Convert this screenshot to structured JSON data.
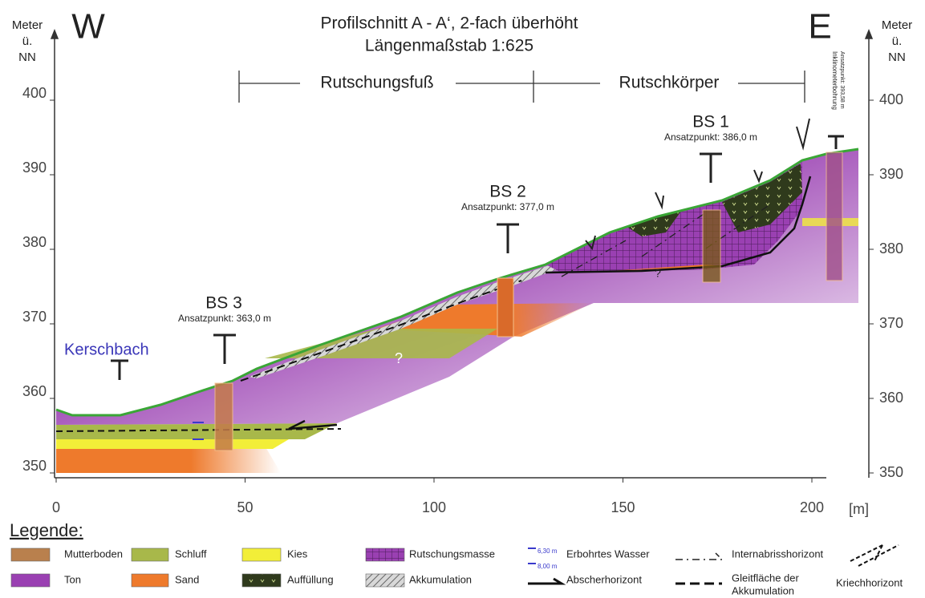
{
  "header": {
    "west": "W",
    "east": "E",
    "title_line1": "Profilschnitt A - A‘, 2-fach überhöht",
    "title_line2": "Längenmaßstab 1:625"
  },
  "axes": {
    "left_label": [
      "Meter",
      "ü.",
      "NN"
    ],
    "right_label": [
      "Meter",
      "ü.",
      "NN"
    ],
    "y_ticks": [
      350,
      360,
      370,
      380,
      390,
      400
    ],
    "x_ticks": [
      0,
      50,
      100,
      150,
      200
    ],
    "x_unit": "[m]"
  },
  "sections": [
    {
      "label": "Rutschungsfuß"
    },
    {
      "label": "Rutschkörper"
    }
  ],
  "boreholes": [
    {
      "name": "BS 3",
      "note": "Ansatzpunkt: 363,0 m"
    },
    {
      "name": "BS 2",
      "note": "Ansatzpunkt: 377,0 m"
    },
    {
      "name": "BS 1",
      "note": "Ansatzpunkt: 386,0 m"
    },
    {
      "name": "Inklinometerbohrung",
      "note": "Ansatzpunkt: 393,58 m"
    }
  ],
  "labels": {
    "river": "Kerschbach",
    "question_1": "?",
    "question_2": "?"
  },
  "legend": {
    "title": "Legende:",
    "items": [
      {
        "label": "Mutterboden"
      },
      {
        "label": "Ton"
      },
      {
        "label": "Schluff"
      },
      {
        "label": "Sand"
      },
      {
        "label": "Kies"
      },
      {
        "label": "Auffüllung"
      },
      {
        "label": "Rutschungsmasse"
      },
      {
        "label": "Akkumulation"
      },
      {
        "label": "Erbohrtes Wasser",
        "marks": [
          "6,30 m",
          "8,00 m"
        ]
      },
      {
        "label": "Abscherhorizont"
      },
      {
        "label": "Internabrisshorizont"
      },
      {
        "label": [
          "Gleitfläche der",
          "Akkumulation"
        ]
      },
      {
        "label": "Kriechhorizont"
      }
    ]
  }
}
